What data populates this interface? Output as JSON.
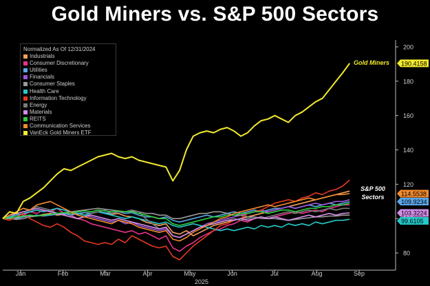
{
  "chart_data": {
    "type": "line",
    "title": "Gold Miners vs. S&P 500 Sectors",
    "xlabel": "2025",
    "ylabel": "",
    "x_ticks": [
      "Jan",
      "Feb",
      "Mar",
      "Apr",
      "May",
      "Jun",
      "Jul",
      "Aug",
      "Sep"
    ],
    "y_ticks": [
      80,
      100,
      120,
      140,
      160,
      180,
      200
    ],
    "ylim": [
      70,
      204
    ],
    "grid": false,
    "legend_title": "Normalized As Of 12/31/2024",
    "legend_position": "top-left",
    "annotations": [
      {
        "text": "Gold Miners",
        "color": "#f2ea2e"
      },
      {
        "text": "S&P 500\nSectors",
        "color": "#ffffff"
      }
    ],
    "series": [
      {
        "name": "Industrials",
        "color": "#f6a25a",
        "last": null,
        "values": [
          100,
          101,
          100.5,
          101.5,
          102,
          101.5,
          102.5,
          103,
          102,
          102.5,
          103,
          102.5,
          103.5,
          103,
          104,
          103,
          102.5,
          103,
          101.5,
          101,
          100,
          98,
          97,
          96,
          97,
          92,
          91,
          93,
          90,
          92,
          94,
          96,
          97,
          98,
          99,
          100,
          101,
          102,
          103,
          104,
          105,
          106,
          107,
          108,
          109,
          110,
          111,
          112,
          113,
          114,
          115,
          116
        ]
      },
      {
        "name": "Consumer Discretionary",
        "color": "#e8338a",
        "last": null,
        "values": [
          100,
          101,
          103,
          102,
          104,
          103,
          105,
          104,
          106,
          103,
          102,
          100,
          99,
          97,
          96,
          95,
          94,
          93,
          92,
          93,
          91,
          92,
          90,
          88,
          90,
          83,
          81,
          84,
          86,
          89,
          91,
          93,
          94,
          96,
          97,
          99,
          98,
          100,
          101,
          100,
          101,
          102,
          103,
          104,
          103,
          104,
          105,
          104,
          106,
          107,
          108,
          108
        ]
      },
      {
        "name": "Utilities",
        "color": "#5aa6e8",
        "last": "109.9234",
        "values": [
          100,
          100.5,
          100,
          101,
          101.5,
          102,
          101.5,
          102,
          102.5,
          103,
          102,
          103,
          103.5,
          103,
          104,
          103.5,
          103,
          104,
          103,
          103.5,
          102,
          101,
          101,
          100,
          101,
          99,
          98,
          99,
          100,
          101,
          102,
          101,
          102,
          103,
          104,
          103,
          104,
          105,
          104,
          105,
          106,
          106,
          107,
          106,
          107,
          108,
          107,
          108,
          109,
          108,
          109,
          109.9
        ]
      },
      {
        "name": "Financials",
        "color": "#9a58d8",
        "last": null,
        "values": [
          100,
          101,
          102,
          103,
          104,
          105,
          104,
          105,
          106,
          105,
          104,
          103,
          102,
          101,
          100,
          99,
          98,
          99,
          97,
          98,
          96,
          95,
          94,
          93,
          94,
          90,
          89,
          91,
          93,
          95,
          97,
          98,
          99,
          100,
          101,
          102,
          103,
          104,
          105,
          104,
          105,
          106,
          107,
          106,
          107,
          108,
          109,
          108,
          109,
          110,
          110,
          111
        ]
      },
      {
        "name": "Consumer Staples",
        "color": "#9a9a9a",
        "last": null,
        "values": [
          100,
          100,
          99.5,
          100,
          101,
          101.5,
          102,
          102.5,
          103,
          103.5,
          104,
          104.5,
          105,
          105.5,
          106,
          105.5,
          105,
          104.5,
          104,
          104.5,
          104,
          103,
          103,
          102,
          102,
          100,
          100,
          101,
          102,
          103,
          103,
          104,
          104,
          103,
          102,
          102,
          101,
          101,
          100,
          100,
          100,
          99.5,
          99,
          99.5,
          100,
          100.5,
          101,
          101,
          101.5,
          101.5,
          102,
          102
        ]
      },
      {
        "name": "Health Care",
        "color": "#26c9c9",
        "last": "99.6105",
        "values": [
          100,
          101,
          102,
          103,
          104,
          105,
          104,
          105,
          106,
          105,
          104,
          103,
          102,
          103,
          104,
          103,
          102,
          101,
          100,
          101,
          100,
          99,
          98,
          97,
          98,
          96,
          95,
          96,
          97,
          96,
          95,
          94,
          93,
          94,
          93,
          94,
          95,
          94,
          96,
          95,
          96,
          95,
          97,
          96,
          97,
          96,
          98,
          97,
          98,
          99,
          99,
          99.6
        ]
      },
      {
        "name": "Information Technology",
        "color": "#e63a22",
        "last": null,
        "values": [
          100,
          99,
          101,
          103,
          100,
          98,
          96,
          95,
          97,
          95,
          92,
          90,
          87,
          86,
          85,
          86,
          85,
          88,
          86,
          90,
          88,
          86,
          84,
          83,
          84,
          78,
          76,
          80,
          84,
          87,
          90,
          93,
          96,
          97,
          99,
          100,
          103,
          104,
          105,
          107,
          109,
          110,
          111,
          110,
          112,
          113,
          115,
          114,
          116,
          117,
          119,
          122.5
        ]
      },
      {
        "name": "Energy",
        "color": "#7a7a7a",
        "last": null,
        "values": [
          100,
          102,
          104,
          106,
          105,
          107,
          106,
          105,
          103,
          102,
          101,
          100,
          101,
          103,
          104,
          105,
          103,
          104,
          104,
          105,
          104,
          100,
          97,
          94,
          95,
          90,
          89,
          91,
          93,
          95,
          96,
          97,
          98,
          99,
          100,
          99,
          100,
          101,
          100,
          101,
          102,
          103,
          104,
          103,
          104,
          105,
          104,
          105,
          106,
          105,
          106,
          106
        ]
      },
      {
        "name": "Materials",
        "color": "#d48ce8",
        "last": "103.3224",
        "values": [
          100,
          102,
          103,
          104,
          105,
          106,
          105,
          104,
          103,
          102,
          101,
          100,
          101,
          102,
          101,
          100,
          99,
          100,
          99,
          98,
          97,
          96,
          95,
          94,
          95,
          90,
          89,
          91,
          93,
          95,
          96,
          97,
          98,
          99,
          99,
          100,
          99,
          100,
          101,
          100,
          101,
          100,
          99,
          100,
          101,
          102,
          101,
          102,
          103,
          102,
          103,
          103.3
        ]
      },
      {
        "name": "REITS",
        "color": "#2ecc40",
        "last": null,
        "values": [
          100,
          100.5,
          101,
          101.5,
          102,
          101.5,
          102,
          102.5,
          103,
          103.5,
          103,
          104,
          104.5,
          104,
          105,
          104.5,
          104,
          104.5,
          104,
          104,
          103,
          102,
          101,
          100,
          100,
          97,
          96,
          97,
          98,
          99,
          100,
          101,
          101,
          102,
          102,
          103,
          103,
          104,
          104,
          103,
          104,
          105,
          105,
          104,
          105,
          106,
          106,
          107,
          107,
          108,
          108,
          109
        ]
      },
      {
        "name": "Communication Services",
        "color": "#f28a2e",
        "last": "114.5538",
        "values": [
          100,
          102,
          104,
          106,
          105,
          108,
          109,
          110,
          108,
          106,
          104,
          102,
          101,
          100,
          99,
          98,
          97,
          99,
          98,
          97,
          95,
          94,
          93,
          92,
          93,
          88,
          87,
          89,
          92,
          94,
          96,
          98,
          100,
          101,
          103,
          104,
          105,
          106,
          107,
          108,
          107,
          108,
          109,
          110,
          111,
          112,
          111,
          112,
          113,
          114,
          114,
          114.6
        ]
      },
      {
        "name": "VanEck Gold Miners ETF",
        "color": "#f2ea2e",
        "last": "190.4158",
        "values": [
          100,
          104,
          103,
          110,
          112,
          115,
          118,
          122,
          126,
          129,
          128,
          130,
          132,
          134,
          136,
          137,
          138,
          136,
          135,
          136,
          134,
          133,
          132,
          131,
          130,
          122,
          128,
          140,
          148,
          150,
          151,
          150,
          152,
          153,
          151,
          148,
          150,
          154,
          157,
          158,
          160,
          158,
          156,
          160,
          162,
          165,
          168,
          170,
          175,
          180,
          185,
          190.4
        ]
      }
    ]
  }
}
